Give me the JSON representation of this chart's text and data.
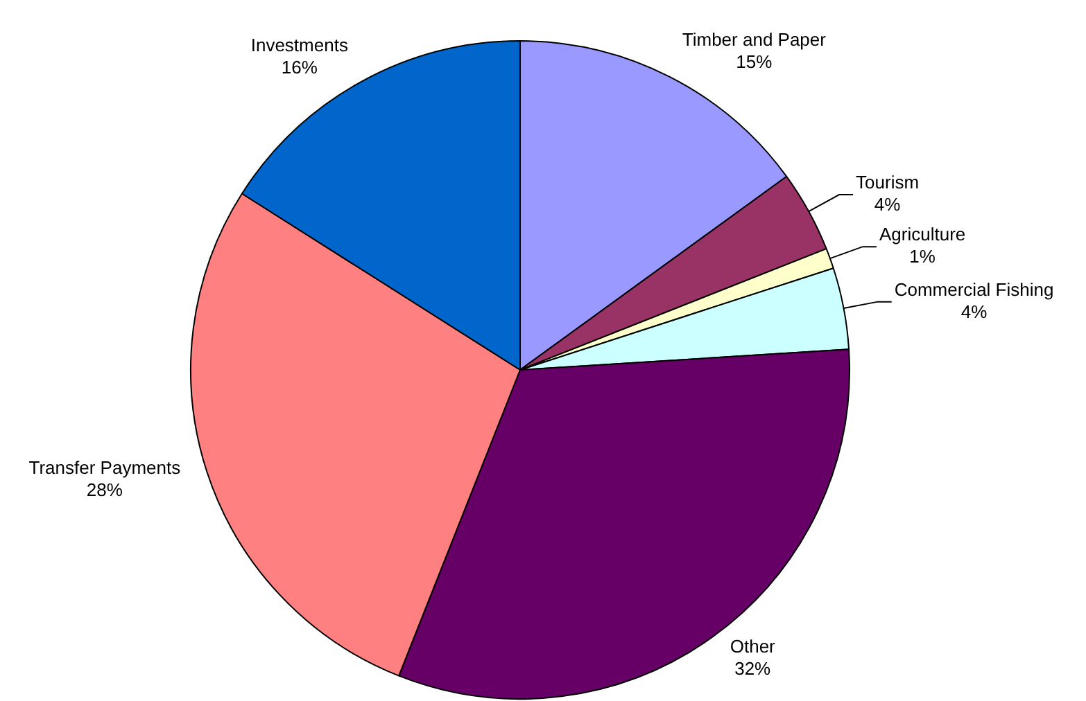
{
  "chart_data": {
    "type": "pie",
    "categories": [
      "Timber and Paper",
      "Tourism",
      "Agriculture",
      "Commercial Fishing",
      "Other",
      "Transfer Payments",
      "Investments"
    ],
    "values": [
      15,
      4,
      1,
      4,
      32,
      28,
      16
    ],
    "value_labels": [
      "15%",
      "4%",
      "1%",
      "4%",
      "32%",
      "28%",
      "16%"
    ],
    "colors": [
      "#9999ff",
      "#993366",
      "#ffffcc",
      "#ccffff",
      "#660066",
      "#ff8080",
      "#0066cc"
    ],
    "legend": false
  }
}
